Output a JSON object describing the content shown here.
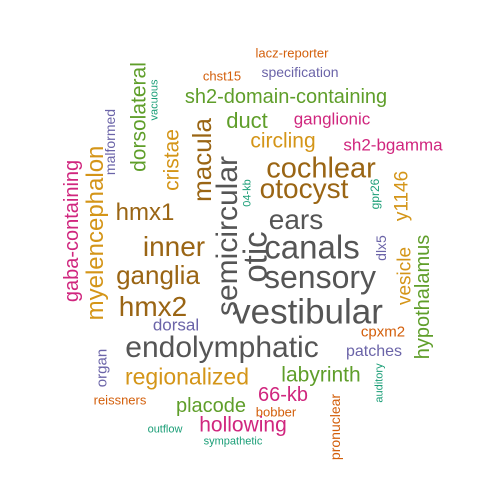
{
  "palette": {
    "grey": "#555555",
    "brown": "#9a6514",
    "green": "#5f9e2a",
    "orange": "#d49518",
    "magenta": "#d0267e",
    "purple": "#6b64a8",
    "teal": "#1b9e77",
    "rust": "#d35f0b"
  },
  "words": [
    {
      "text": "lacz-reporter",
      "color": "rust"
    },
    {
      "text": "chst15",
      "color": "rust"
    },
    {
      "text": "specification",
      "color": "purple"
    },
    {
      "text": "vacuous",
      "color": "teal"
    },
    {
      "text": "dorsolateral",
      "color": "green"
    },
    {
      "text": "sh2-domain-containing",
      "color": "green"
    },
    {
      "text": "malformed",
      "color": "purple"
    },
    {
      "text": "duct",
      "color": "green"
    },
    {
      "text": "ganglionic",
      "color": "magenta"
    },
    {
      "text": "cristae",
      "color": "orange"
    },
    {
      "text": "macula",
      "color": "brown"
    },
    {
      "text": "circling",
      "color": "orange"
    },
    {
      "text": "sh2-bgamma",
      "color": "magenta"
    },
    {
      "text": "myelencephalon",
      "color": "orange"
    },
    {
      "text": "gaba-containing",
      "color": "magenta"
    },
    {
      "text": "semicircular",
      "color": "grey"
    },
    {
      "text": "cochlear",
      "color": "brown"
    },
    {
      "text": "hmx1",
      "color": "brown"
    },
    {
      "text": "otocyst",
      "color": "brown"
    },
    {
      "text": "04-kb",
      "color": "teal"
    },
    {
      "text": "gpr26",
      "color": "teal"
    },
    {
      "text": "vesicle",
      "color": "orange"
    },
    {
      "text": "y1146",
      "color": "orange"
    },
    {
      "text": "ears",
      "color": "grey"
    },
    {
      "text": "otic",
      "color": "grey"
    },
    {
      "text": "hypothalamus",
      "color": "green"
    },
    {
      "text": "inner",
      "color": "brown"
    },
    {
      "text": "canals",
      "color": "grey"
    },
    {
      "text": "dlx5",
      "color": "purple"
    },
    {
      "text": "ganglia",
      "color": "brown"
    },
    {
      "text": "sensory",
      "color": "grey"
    },
    {
      "text": "hmx2",
      "color": "brown"
    },
    {
      "text": "vestibular",
      "color": "grey"
    },
    {
      "text": "dorsal",
      "color": "purple"
    },
    {
      "text": "cpxm2",
      "color": "rust"
    },
    {
      "text": "endolymphatic",
      "color": "grey"
    },
    {
      "text": "patches",
      "color": "purple"
    },
    {
      "text": "organ",
      "color": "purple"
    },
    {
      "text": "regionalized",
      "color": "orange"
    },
    {
      "text": "labyrinth",
      "color": "green"
    },
    {
      "text": "auditory",
      "color": "teal"
    },
    {
      "text": "66-kb",
      "color": "magenta"
    },
    {
      "text": "reissners",
      "color": "rust"
    },
    {
      "text": "placode",
      "color": "green"
    },
    {
      "text": "pronuclear",
      "color": "rust"
    },
    {
      "text": "bobber",
      "color": "rust"
    },
    {
      "text": "hollowing",
      "color": "magenta"
    },
    {
      "text": "outflow",
      "color": "teal"
    },
    {
      "text": "sympathetic",
      "color": "teal"
    }
  ]
}
